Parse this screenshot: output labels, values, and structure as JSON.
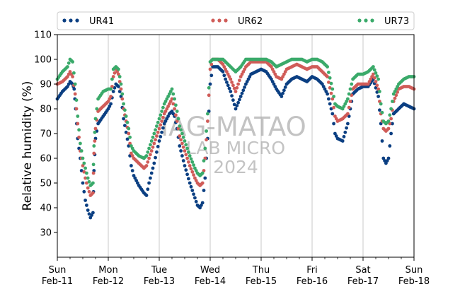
{
  "chart_data": {
    "type": "scatter",
    "ylabel": "Relative humidity (%)",
    "ylim": [
      20,
      110
    ],
    "yticks": [
      30,
      40,
      50,
      60,
      70,
      80,
      90,
      100,
      110
    ],
    "xlim": [
      "2024-02-11T00:00",
      "2024-02-18T00:00"
    ],
    "xticks": [
      {
        "day": "Sun",
        "date": "Feb-11"
      },
      {
        "day": "Mon",
        "date": "Feb-12"
      },
      {
        "day": "Tue",
        "date": "Feb-13"
      },
      {
        "day": "Wed",
        "date": "Feb-14"
      },
      {
        "day": "Thu",
        "date": "Feb-15"
      },
      {
        "day": "Fri",
        "date": "Feb-16"
      },
      {
        "day": "Sat",
        "date": "Feb-17"
      },
      {
        "day": "Sun",
        "date": "Feb-18"
      }
    ],
    "grid": "vertical",
    "legend_position": "top",
    "watermark": [
      "IAG-MATAO",
      "LAB MICRO",
      "2024"
    ],
    "series": [
      {
        "name": "UR41",
        "color": "#0b3f82",
        "points": [
          [
            0.0,
            84
          ],
          [
            0.1,
            87
          ],
          [
            0.2,
            89
          ],
          [
            0.25,
            91
          ],
          [
            0.3,
            90
          ],
          [
            0.33,
            88
          ],
          [
            0.36,
            80
          ],
          [
            0.4,
            68
          ],
          [
            0.45,
            60
          ],
          [
            0.5,
            50
          ],
          [
            0.55,
            43
          ],
          [
            0.6,
            39
          ],
          [
            0.65,
            36
          ],
          [
            0.7,
            38
          ],
          [
            0.72,
            55
          ],
          [
            0.75,
            68
          ],
          [
            0.8,
            74
          ],
          [
            0.9,
            77
          ],
          [
            1.0,
            80
          ],
          [
            1.05,
            82
          ],
          [
            1.1,
            87
          ],
          [
            1.15,
            90
          ],
          [
            1.2,
            89
          ],
          [
            1.25,
            85
          ],
          [
            1.3,
            76
          ],
          [
            1.4,
            65
          ],
          [
            1.45,
            57
          ],
          [
            1.5,
            53
          ],
          [
            1.6,
            49
          ],
          [
            1.7,
            46
          ],
          [
            1.75,
            45
          ],
          [
            1.8,
            50
          ],
          [
            1.9,
            58
          ],
          [
            2.0,
            67
          ],
          [
            2.1,
            74
          ],
          [
            2.2,
            78
          ],
          [
            2.25,
            79
          ],
          [
            2.3,
            77
          ],
          [
            2.35,
            72
          ],
          [
            2.4,
            65
          ],
          [
            2.5,
            57
          ],
          [
            2.6,
            50
          ],
          [
            2.7,
            44
          ],
          [
            2.75,
            41
          ],
          [
            2.8,
            40
          ],
          [
            2.85,
            42
          ],
          [
            2.9,
            52
          ],
          [
            2.95,
            68
          ],
          [
            3.0,
            90
          ],
          [
            3.05,
            97
          ],
          [
            3.15,
            97
          ],
          [
            3.25,
            95
          ],
          [
            3.3,
            92
          ],
          [
            3.4,
            87
          ],
          [
            3.5,
            80
          ],
          [
            3.6,
            85
          ],
          [
            3.7,
            90
          ],
          [
            3.8,
            94
          ],
          [
            3.9,
            95
          ],
          [
            4.0,
            96
          ],
          [
            4.1,
            95
          ],
          [
            4.2,
            92
          ],
          [
            4.3,
            88
          ],
          [
            4.4,
            85
          ],
          [
            4.5,
            90
          ],
          [
            4.6,
            92
          ],
          [
            4.7,
            93
          ],
          [
            4.8,
            92
          ],
          [
            4.9,
            91
          ],
          [
            5.0,
            93
          ],
          [
            5.1,
            92
          ],
          [
            5.2,
            90
          ],
          [
            5.3,
            86
          ],
          [
            5.4,
            78
          ],
          [
            5.45,
            70
          ],
          [
            5.5,
            68
          ],
          [
            5.6,
            67
          ],
          [
            5.7,
            74
          ],
          [
            5.8,
            86
          ],
          [
            5.9,
            88
          ],
          [
            6.0,
            89
          ],
          [
            6.1,
            89
          ],
          [
            6.2,
            92
          ],
          [
            6.3,
            85
          ],
          [
            6.35,
            74
          ],
          [
            6.4,
            60
          ],
          [
            6.45,
            58
          ],
          [
            6.5,
            60
          ],
          [
            6.55,
            70
          ],
          [
            6.6,
            78
          ],
          [
            6.7,
            80
          ],
          [
            6.8,
            82
          ],
          [
            6.9,
            81
          ],
          [
            7.0,
            80
          ]
        ]
      },
      {
        "name": "UR62",
        "color": "#d05c58",
        "points": [
          [
            0.0,
            90
          ],
          [
            0.1,
            91
          ],
          [
            0.2,
            93
          ],
          [
            0.25,
            95
          ],
          [
            0.3,
            93
          ],
          [
            0.35,
            86
          ],
          [
            0.4,
            74
          ],
          [
            0.45,
            63
          ],
          [
            0.5,
            57
          ],
          [
            0.55,
            52
          ],
          [
            0.6,
            48
          ],
          [
            0.65,
            45
          ],
          [
            0.7,
            46
          ],
          [
            0.72,
            62
          ],
          [
            0.75,
            72
          ],
          [
            0.8,
            79
          ],
          [
            0.9,
            81
          ],
          [
            1.0,
            83
          ],
          [
            1.05,
            85
          ],
          [
            1.1,
            93
          ],
          [
            1.15,
            96
          ],
          [
            1.2,
            94
          ],
          [
            1.25,
            88
          ],
          [
            1.3,
            80
          ],
          [
            1.4,
            70
          ],
          [
            1.45,
            62
          ],
          [
            1.5,
            60
          ],
          [
            1.6,
            58
          ],
          [
            1.7,
            56
          ],
          [
            1.75,
            57
          ],
          [
            1.8,
            60
          ],
          [
            1.9,
            66
          ],
          [
            2.0,
            72
          ],
          [
            2.1,
            78
          ],
          [
            2.2,
            82
          ],
          [
            2.25,
            84
          ],
          [
            2.3,
            80
          ],
          [
            2.35,
            75
          ],
          [
            2.4,
            69
          ],
          [
            2.5,
            63
          ],
          [
            2.6,
            57
          ],
          [
            2.7,
            52
          ],
          [
            2.75,
            50
          ],
          [
            2.8,
            49
          ],
          [
            2.85,
            50
          ],
          [
            2.9,
            60
          ],
          [
            2.95,
            75
          ],
          [
            3.0,
            96
          ],
          [
            3.05,
            100
          ],
          [
            3.15,
            100
          ],
          [
            3.25,
            98
          ],
          [
            3.3,
            96
          ],
          [
            3.4,
            92
          ],
          [
            3.5,
            87
          ],
          [
            3.6,
            93
          ],
          [
            3.7,
            97
          ],
          [
            3.8,
            99
          ],
          [
            3.9,
            99
          ],
          [
            4.0,
            99
          ],
          [
            4.1,
            99
          ],
          [
            4.2,
            97
          ],
          [
            4.3,
            93
          ],
          [
            4.4,
            92
          ],
          [
            4.5,
            96
          ],
          [
            4.6,
            97
          ],
          [
            4.7,
            98
          ],
          [
            4.8,
            97
          ],
          [
            4.9,
            96
          ],
          [
            5.0,
            97
          ],
          [
            5.1,
            97
          ],
          [
            5.2,
            95
          ],
          [
            5.3,
            93
          ],
          [
            5.4,
            84
          ],
          [
            5.45,
            77
          ],
          [
            5.5,
            75
          ],
          [
            5.6,
            76
          ],
          [
            5.7,
            78
          ],
          [
            5.8,
            88
          ],
          [
            5.9,
            90
          ],
          [
            6.0,
            90
          ],
          [
            6.1,
            90
          ],
          [
            6.2,
            94
          ],
          [
            6.3,
            88
          ],
          [
            6.35,
            78
          ],
          [
            6.4,
            72
          ],
          [
            6.45,
            71
          ],
          [
            6.5,
            72
          ],
          [
            6.55,
            76
          ],
          [
            6.6,
            83
          ],
          [
            6.7,
            88
          ],
          [
            6.8,
            89
          ],
          [
            6.9,
            89
          ],
          [
            7.0,
            88
          ]
        ]
      },
      {
        "name": "UR73",
        "color": "#3aaa6a",
        "points": [
          [
            0.0,
            92
          ],
          [
            0.1,
            95
          ],
          [
            0.2,
            97
          ],
          [
            0.25,
            100
          ],
          [
            0.3,
            99
          ],
          [
            0.35,
            90
          ],
          [
            0.4,
            77
          ],
          [
            0.45,
            66
          ],
          [
            0.5,
            60
          ],
          [
            0.55,
            56
          ],
          [
            0.6,
            52
          ],
          [
            0.65,
            49
          ],
          [
            0.7,
            50
          ],
          [
            0.72,
            65
          ],
          [
            0.75,
            76
          ],
          [
            0.8,
            84
          ],
          [
            0.9,
            87
          ],
          [
            1.0,
            88
          ],
          [
            1.05,
            88
          ],
          [
            1.1,
            96
          ],
          [
            1.15,
            97
          ],
          [
            1.2,
            96
          ],
          [
            1.25,
            90
          ],
          [
            1.3,
            82
          ],
          [
            1.4,
            72
          ],
          [
            1.45,
            65
          ],
          [
            1.5,
            63
          ],
          [
            1.6,
            61
          ],
          [
            1.7,
            60
          ],
          [
            1.75,
            61
          ],
          [
            1.8,
            64
          ],
          [
            1.9,
            70
          ],
          [
            2.0,
            76
          ],
          [
            2.1,
            82
          ],
          [
            2.2,
            86
          ],
          [
            2.25,
            88
          ],
          [
            2.3,
            84
          ],
          [
            2.35,
            79
          ],
          [
            2.4,
            73
          ],
          [
            2.5,
            67
          ],
          [
            2.6,
            61
          ],
          [
            2.7,
            56
          ],
          [
            2.75,
            54
          ],
          [
            2.8,
            53
          ],
          [
            2.85,
            54
          ],
          [
            2.9,
            64
          ],
          [
            2.95,
            78
          ],
          [
            3.0,
            99
          ],
          [
            3.05,
            100
          ],
          [
            3.15,
            100
          ],
          [
            3.25,
            100
          ],
          [
            3.3,
            99
          ],
          [
            3.4,
            97
          ],
          [
            3.5,
            95
          ],
          [
            3.6,
            97
          ],
          [
            3.7,
            100
          ],
          [
            3.8,
            100
          ],
          [
            3.9,
            100
          ],
          [
            4.0,
            100
          ],
          [
            4.1,
            100
          ],
          [
            4.2,
            99
          ],
          [
            4.3,
            97
          ],
          [
            4.4,
            98
          ],
          [
            4.5,
            99
          ],
          [
            4.6,
            100
          ],
          [
            4.7,
            100
          ],
          [
            4.8,
            100
          ],
          [
            4.9,
            99
          ],
          [
            5.0,
            100
          ],
          [
            5.1,
            100
          ],
          [
            5.2,
            99
          ],
          [
            5.3,
            97
          ],
          [
            5.4,
            88
          ],
          [
            5.45,
            82
          ],
          [
            5.5,
            81
          ],
          [
            5.6,
            80
          ],
          [
            5.7,
            84
          ],
          [
            5.8,
            92
          ],
          [
            5.9,
            94
          ],
          [
            6.0,
            94
          ],
          [
            6.1,
            95
          ],
          [
            6.2,
            97
          ],
          [
            6.3,
            92
          ],
          [
            6.35,
            82
          ],
          [
            6.4,
            75
          ],
          [
            6.45,
            74
          ],
          [
            6.5,
            75
          ],
          [
            6.55,
            80
          ],
          [
            6.6,
            86
          ],
          [
            6.7,
            90
          ],
          [
            6.8,
            92
          ],
          [
            6.9,
            93
          ],
          [
            7.0,
            93
          ]
        ]
      }
    ]
  }
}
